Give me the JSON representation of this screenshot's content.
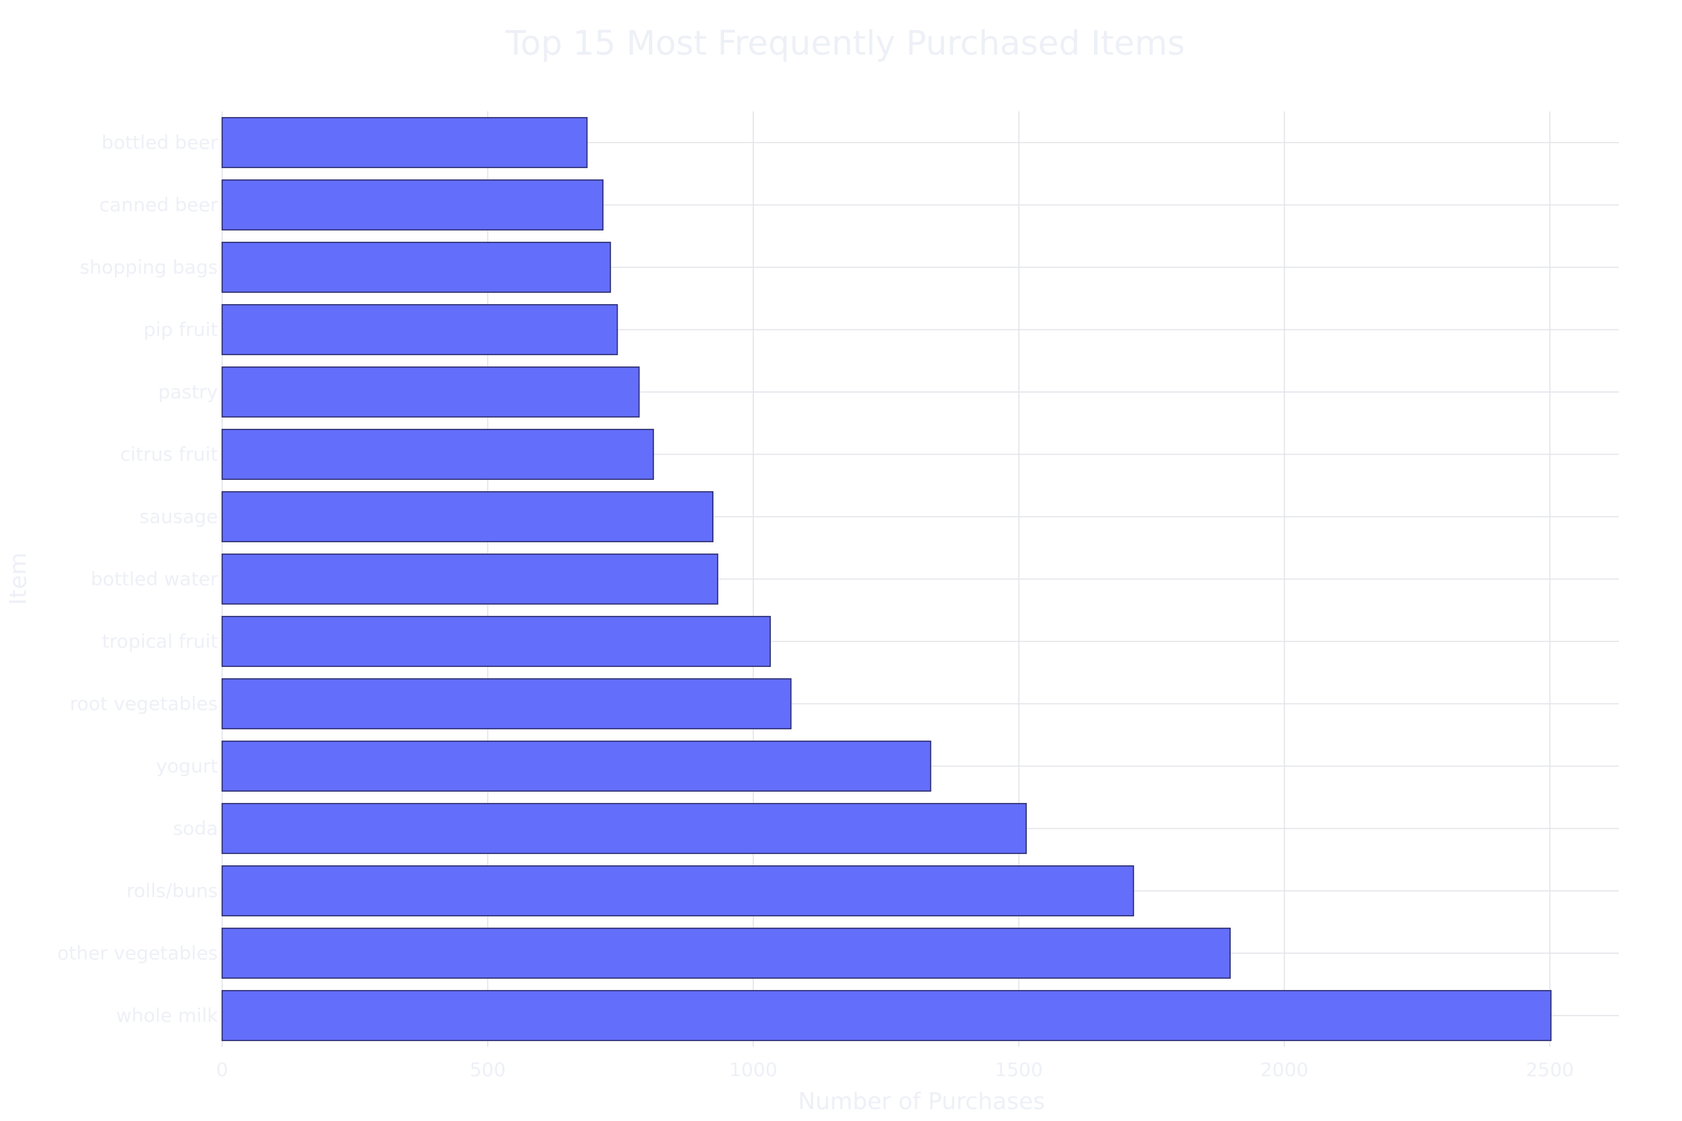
{
  "chart_data": {
    "type": "bar",
    "orientation": "horizontal",
    "title": "Top 15 Most Frequently Purchased Items",
    "xlabel": "Number of Purchases",
    "ylabel": "Item",
    "xlim": [
      0,
      2630
    ],
    "xticks": [
      0,
      500,
      1000,
      1500,
      2000,
      2500
    ],
    "grid": true,
    "bar_color": "#636efa",
    "bar_outline": "#2c2c6e",
    "categories": [
      "whole milk",
      "other vegetables",
      "rolls/buns",
      "soda",
      "yogurt",
      "root vegetables",
      "tropical fruit",
      "bottled water",
      "sausage",
      "citrus fruit",
      "pastry",
      "pip fruit",
      "shopping bags",
      "canned beer",
      "bottled beer"
    ],
    "values": [
      2502,
      1898,
      1716,
      1514,
      1334,
      1071,
      1032,
      933,
      924,
      812,
      785,
      744,
      731,
      717,
      687
    ]
  }
}
